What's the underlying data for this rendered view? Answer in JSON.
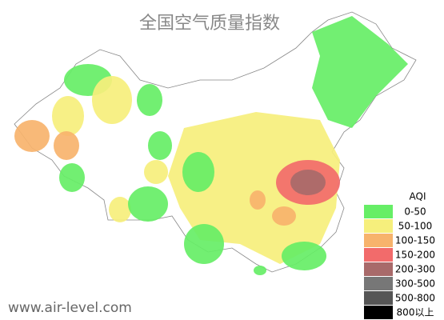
{
  "title": "全国空气质量指数",
  "legend": {
    "title": "AQI",
    "items": [
      {
        "label": "0-50",
        "color": "#66ee66"
      },
      {
        "label": "50-100",
        "color": "#f6ef7c"
      },
      {
        "label": "100-150",
        "color": "#f7b36c"
      },
      {
        "label": "150-200",
        "color": "#f26b6b"
      },
      {
        "label": "200-300",
        "color": "#a86a6a"
      },
      {
        "label": "300-500",
        "color": "#777777"
      },
      {
        "label": "500-800",
        "color": "#555555"
      },
      {
        "label": "800以上",
        "color": "#000000"
      }
    ]
  },
  "watermark": "www.air-level.com"
}
